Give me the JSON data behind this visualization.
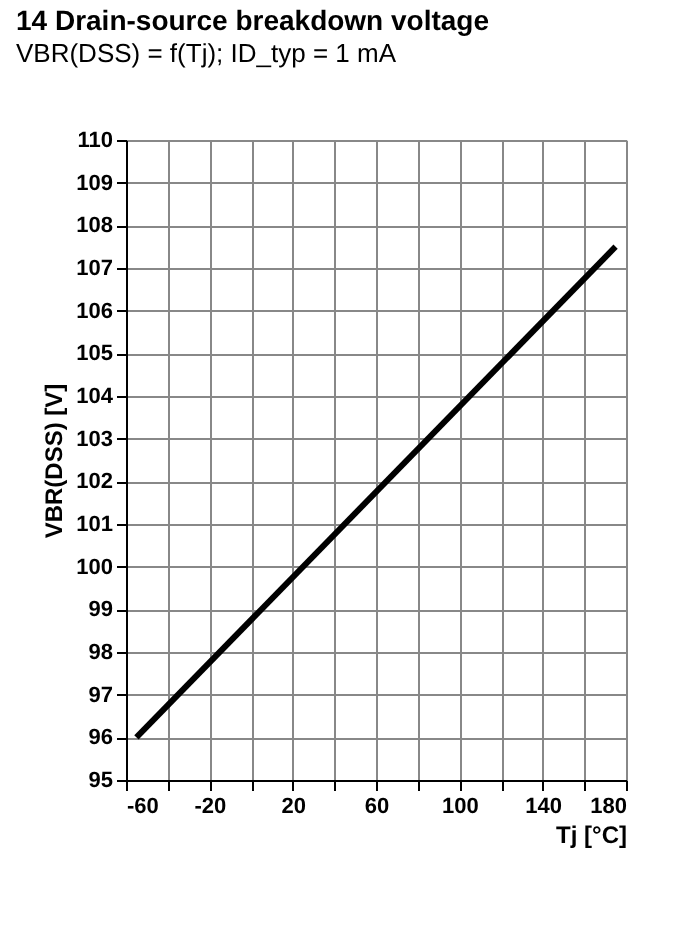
{
  "chart_data": {
    "type": "line",
    "title": "14 Drain-source breakdown voltage",
    "subtitle": "VBR(DSS) = f(Tj); ID_typ = 1 mA",
    "xlabel": "Tj [°C]",
    "ylabel": "VBR(DSS) [V]",
    "x": [
      -55,
      175
    ],
    "series": [
      {
        "color": "#000000",
        "values": [
          96,
          107.5
        ]
      }
    ],
    "xlim": [
      -60,
      180
    ],
    "xticks": [
      -60,
      {
        "value": -40,
        "label": null
      },
      -20,
      {
        "value": 0,
        "label": null
      },
      20,
      {
        "value": 40,
        "label": null
      },
      60,
      {
        "value": 80,
        "label": null
      },
      100,
      {
        "value": 120,
        "label": null
      },
      140,
      {
        "value": 160,
        "label": null
      },
      180
    ],
    "ylim": [
      95,
      110
    ],
    "yticks": [
      95,
      96,
      97,
      98,
      99,
      100,
      101,
      102,
      103,
      104,
      105,
      106,
      107,
      108,
      109,
      110
    ],
    "grid": true
  }
}
